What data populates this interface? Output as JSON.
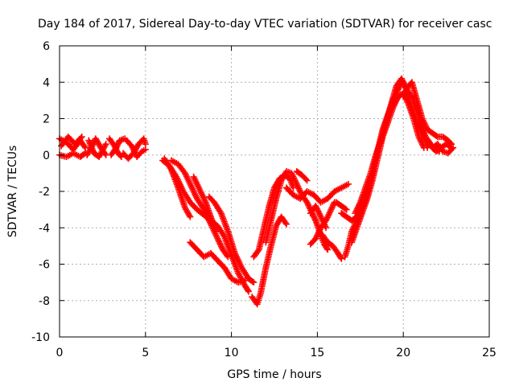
{
  "chart_data": {
    "type": "scatter",
    "title": "Day 184 of 2017, Sidereal Day-to-day VTEC variation (SDTVAR) for receiver casc",
    "xlabel": "GPS time / hours",
    "ylabel": "SDTVAR / TECUs",
    "xlim": [
      0,
      25
    ],
    "ylim": [
      -10,
      6
    ],
    "xticks": [
      "0",
      "5",
      "10",
      "15",
      "20",
      "25"
    ],
    "yticks": [
      "-10",
      "-8",
      "-6",
      "-4",
      "-2",
      "0",
      "2",
      "4",
      "6"
    ],
    "xtick_values": [
      0,
      5,
      10,
      15,
      20,
      25
    ],
    "ytick_values": [
      -10,
      -8,
      -6,
      -4,
      -2,
      0,
      2,
      4,
      6
    ],
    "grid": true,
    "marker": "plus",
    "colors": {
      "series": "#ff0000",
      "grid": "#b0b0b0",
      "axis": "#000000"
    },
    "series": [
      {
        "color": "#ff0000",
        "tracks": [
          [
            [
              0,
              0.9
            ],
            [
              0.4,
              0.7
            ],
            [
              0.8,
              0.3
            ],
            [
              1.2,
              0.8
            ],
            [
              1.5,
              0.4
            ]
          ],
          [
            [
              0,
              0.0
            ],
            [
              0.4,
              -0.1
            ],
            [
              0.8,
              0.1
            ],
            [
              1.2,
              -0.1
            ],
            [
              1.5,
              0.1
            ]
          ],
          [
            [
              0.1,
              0.5
            ],
            [
              0.5,
              1.0
            ],
            [
              0.9,
              0.6
            ],
            [
              1.3,
              1.0
            ]
          ],
          [
            [
              1.6,
              0.0
            ],
            [
              1.9,
              0.5
            ],
            [
              2.1,
              0.9
            ],
            [
              2.4,
              0.4
            ],
            [
              2.7,
              0.0
            ]
          ],
          [
            [
              1.7,
              0.8
            ],
            [
              2.0,
              0.1
            ],
            [
              2.3,
              -0.1
            ],
            [
              2.7,
              0.6
            ]
          ],
          [
            [
              2.9,
              0.9
            ],
            [
              3.2,
              0.5
            ],
            [
              3.4,
              0.1
            ],
            [
              3.6,
              -0.1
            ]
          ],
          [
            [
              3.0,
              0.0
            ],
            [
              3.3,
              0.4
            ],
            [
              3.5,
              0.8
            ],
            [
              3.8,
              0.9
            ]
          ],
          [
            [
              3.7,
              0.1
            ],
            [
              4.0,
              -0.2
            ],
            [
              4.3,
              0.1
            ],
            [
              4.6,
              0.6
            ],
            [
              4.9,
              0.9
            ],
            [
              5.0,
              0.6
            ]
          ],
          [
            [
              3.9,
              0.8
            ],
            [
              4.2,
              0.5
            ],
            [
              4.5,
              -0.1
            ],
            [
              4.8,
              0.2
            ],
            [
              5.0,
              0.3
            ]
          ],
          [
            [
              6.0,
              -0.3
            ],
            [
              6.4,
              -0.6
            ],
            [
              6.8,
              -1.2
            ],
            [
              7.2,
              -2.0
            ],
            [
              7.6,
              -2.6
            ],
            [
              8.0,
              -3.0
            ],
            [
              8.4,
              -3.3
            ],
            [
              8.8,
              -3.6
            ],
            [
              9.2,
              -3.9
            ],
            [
              9.6,
              -4.5
            ],
            [
              10.0,
              -5.5
            ],
            [
              10.4,
              -6.5
            ],
            [
              10.8,
              -7.2
            ],
            [
              11.0,
              -7.5
            ]
          ],
          [
            [
              6.1,
              -0.2
            ],
            [
              6.5,
              -0.8
            ],
            [
              6.9,
              -1.8
            ],
            [
              7.3,
              -2.9
            ],
            [
              7.6,
              -3.4
            ]
          ],
          [
            [
              6.5,
              -0.3
            ],
            [
              6.9,
              -0.5
            ],
            [
              7.3,
              -1.0
            ],
            [
              7.6,
              -1.6
            ],
            [
              8.0,
              -2.4
            ],
            [
              8.4,
              -3.0
            ],
            [
              8.8,
              -3.8
            ],
            [
              9.2,
              -4.6
            ],
            [
              9.5,
              -5.2
            ],
            [
              9.8,
              -5.6
            ]
          ],
          [
            [
              7.8,
              -1.2
            ],
            [
              8.2,
              -2.0
            ],
            [
              8.5,
              -2.6
            ],
            [
              8.8,
              -3.4
            ],
            [
              9.1,
              -4.2
            ]
          ],
          [
            [
              8.7,
              -2.3
            ],
            [
              9.0,
              -2.6
            ],
            [
              9.4,
              -3.2
            ],
            [
              9.8,
              -4.2
            ],
            [
              10.2,
              -5.4
            ],
            [
              10.6,
              -6.2
            ],
            [
              11.0,
              -6.8
            ],
            [
              11.3,
              -7.0
            ]
          ],
          [
            [
              7.6,
              -4.8
            ],
            [
              8.0,
              -5.2
            ],
            [
              8.4,
              -5.6
            ],
            [
              8.8,
              -5.4
            ],
            [
              9.2,
              -5.8
            ],
            [
              9.6,
              -6.2
            ],
            [
              10.0,
              -6.8
            ],
            [
              10.4,
              -7.0
            ],
            [
              10.8,
              -6.9
            ]
          ],
          [
            [
              11.2,
              -7.8
            ],
            [
              11.5,
              -8.2
            ],
            [
              11.7,
              -7.6
            ],
            [
              12.0,
              -6.2
            ],
            [
              12.3,
              -5.0
            ],
            [
              12.6,
              -3.9
            ],
            [
              12.9,
              -3.4
            ],
            [
              13.2,
              -3.8
            ]
          ],
          [
            [
              11.3,
              -5.6
            ],
            [
              11.6,
              -5.2
            ],
            [
              11.9,
              -4.0
            ],
            [
              12.2,
              -2.8
            ],
            [
              12.5,
              -1.8
            ],
            [
              12.8,
              -1.3
            ],
            [
              13.1,
              -1.1
            ],
            [
              13.4,
              -1.3
            ],
            [
              13.6,
              -1.8
            ]
          ],
          [
            [
              12.0,
              -4.8
            ],
            [
              12.3,
              -3.6
            ],
            [
              12.6,
              -2.4
            ],
            [
              12.9,
              -1.4
            ],
            [
              13.2,
              -0.9
            ],
            [
              13.5,
              -1.0
            ],
            [
              13.8,
              -1.6
            ],
            [
              14.1,
              -2.2
            ],
            [
              14.4,
              -2.6
            ],
            [
              14.7,
              -3.2
            ],
            [
              14.9,
              -3.6
            ],
            [
              15.2,
              -4.4
            ],
            [
              15.4,
              -4.9
            ],
            [
              15.6,
              -5.2
            ]
          ],
          [
            [
              13.2,
              -1.8
            ],
            [
              13.6,
              -2.2
            ],
            [
              14.0,
              -2.4
            ],
            [
              14.4,
              -2.0
            ],
            [
              14.8,
              -2.2
            ],
            [
              15.2,
              -2.6
            ],
            [
              15.6,
              -2.4
            ],
            [
              16.0,
              -2.0
            ],
            [
              16.4,
              -1.8
            ],
            [
              16.8,
              -1.6
            ]
          ],
          [
            [
              13.8,
              -0.9
            ],
            [
              14.1,
              -1.1
            ],
            [
              14.4,
              -1.4
            ]
          ],
          [
            [
              14.6,
              -3.2
            ],
            [
              14.9,
              -2.8
            ],
            [
              15.2,
              -3.4
            ],
            [
              15.5,
              -4.0
            ]
          ],
          [
            [
              14.6,
              -4.9
            ],
            [
              14.9,
              -4.6
            ],
            [
              15.2,
              -4.0
            ],
            [
              15.5,
              -3.6
            ],
            [
              15.8,
              -3.0
            ],
            [
              16.0,
              -2.6
            ]
          ],
          [
            [
              15.3,
              -4.4
            ],
            [
              15.6,
              -4.8
            ],
            [
              15.9,
              -5.0
            ],
            [
              16.2,
              -5.4
            ],
            [
              16.4,
              -5.7
            ]
          ],
          [
            [
              16.4,
              -3.2
            ],
            [
              16.7,
              -3.4
            ],
            [
              17.0,
              -3.6
            ],
            [
              17.3,
              -3.4
            ],
            [
              17.5,
              -3.0
            ]
          ],
          [
            [
              16.1,
              -2.6
            ],
            [
              16.4,
              -2.8
            ],
            [
              16.7,
              -3.0
            ]
          ],
          [
            [
              16.6,
              -5.6
            ],
            [
              16.8,
              -5.0
            ],
            [
              17.0,
              -4.2
            ],
            [
              17.3,
              -3.6
            ],
            [
              17.6,
              -3.0
            ],
            [
              17.9,
              -2.2
            ],
            [
              18.2,
              -1.0
            ],
            [
              18.5,
              0.2
            ],
            [
              18.8,
              1.4
            ],
            [
              19.1,
              2.2
            ],
            [
              19.4,
              3.0
            ],
            [
              19.7,
              3.6
            ],
            [
              19.9,
              4.0
            ],
            [
              20.1,
              3.8
            ],
            [
              20.3,
              3.2
            ],
            [
              20.6,
              2.2
            ],
            [
              20.9,
              1.6
            ],
            [
              21.2,
              1.0
            ],
            [
              21.5,
              0.6
            ],
            [
              21.8,
              0.3
            ],
            [
              22.1,
              0.2
            ]
          ],
          [
            [
              17.0,
              -4.8
            ],
            [
              17.3,
              -4.0
            ],
            [
              17.6,
              -3.2
            ],
            [
              17.9,
              -2.4
            ],
            [
              18.2,
              -1.4
            ],
            [
              18.5,
              -0.2
            ],
            [
              18.8,
              1.0
            ],
            [
              19.1,
              1.8
            ],
            [
              19.4,
              2.6
            ],
            [
              19.7,
              3.2
            ],
            [
              20.0,
              3.4
            ],
            [
              20.3,
              2.8
            ],
            [
              20.6,
              2.0
            ],
            [
              20.9,
              1.0
            ],
            [
              21.2,
              0.4
            ]
          ],
          [
            [
              17.2,
              -3.2
            ],
            [
              17.5,
              -2.6
            ],
            [
              17.8,
              -1.8
            ],
            [
              18.1,
              -1.0
            ],
            [
              18.4,
              0.0
            ],
            [
              18.7,
              0.8
            ],
            [
              19.0,
              1.8
            ],
            [
              19.3,
              2.8
            ],
            [
              19.6,
              3.8
            ],
            [
              19.9,
              4.2
            ],
            [
              20.2,
              3.6
            ],
            [
              20.5,
              3.2
            ],
            [
              20.8,
              2.4
            ],
            [
              21.1,
              1.4
            ],
            [
              21.4,
              0.4
            ]
          ],
          [
            [
              20.0,
              3.2
            ],
            [
              20.3,
              3.8
            ],
            [
              20.5,
              4.0
            ],
            [
              20.8,
              3.0
            ],
            [
              21.1,
              2.0
            ],
            [
              21.4,
              1.4
            ],
            [
              21.7,
              1.2
            ],
            [
              22.0,
              1.0
            ],
            [
              22.3,
              1.0
            ],
            [
              22.6,
              0.8
            ],
            [
              22.8,
              0.6
            ]
          ],
          [
            [
              21.0,
              1.6
            ],
            [
              21.3,
              1.0
            ],
            [
              21.6,
              0.6
            ],
            [
              21.9,
              0.2
            ],
            [
              22.2,
              0.4
            ],
            [
              22.5,
              0.6
            ],
            [
              22.8,
              0.4
            ]
          ],
          [
            [
              21.4,
              0.8
            ],
            [
              21.7,
              0.4
            ],
            [
              22.0,
              0.6
            ],
            [
              22.3,
              0.2
            ],
            [
              22.6,
              0.1
            ],
            [
              22.9,
              0.4
            ]
          ]
        ]
      }
    ]
  }
}
